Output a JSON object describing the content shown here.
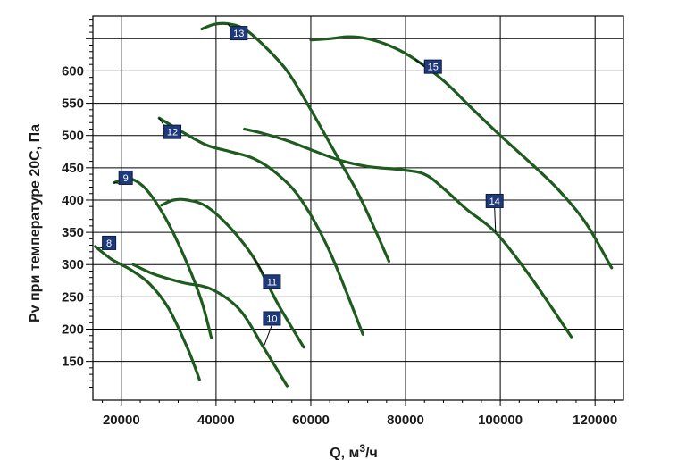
{
  "chart_data": {
    "type": "line",
    "xlabel": "Q, м³/ч",
    "ylabel": "Pv при температуре 20C,  Па",
    "xlim": [
      14000,
      126000
    ],
    "ylim": [
      90,
      685
    ],
    "x_ticks": [
      20000,
      40000,
      60000,
      80000,
      100000,
      120000
    ],
    "x_tick_labels": [
      "20000",
      "40000",
      "60000",
      "80000",
      "100000",
      "120000"
    ],
    "y_ticks": [
      150,
      200,
      250,
      300,
      350,
      400,
      450,
      500,
      550,
      600
    ],
    "y_tick_labels": [
      "150",
      "200",
      "250",
      "300",
      "350",
      "400",
      "450",
      "500",
      "550",
      "600"
    ],
    "y_gridlines": [
      150,
      200,
      250,
      300,
      350,
      400,
      450,
      500,
      550,
      600,
      650
    ],
    "grid": true,
    "line_color": "#1e5b1e",
    "series": [
      {
        "name": "8",
        "label_at": [
          16000,
          344
        ],
        "x": [
          14500,
          18000,
          22000,
          26000,
          30000,
          34000,
          36500
        ],
        "y": [
          328,
          308,
          292,
          270,
          232,
          170,
          122
        ]
      },
      {
        "name": "9",
        "label_at": [
          19500,
          445
        ],
        "x": [
          18500,
          20500,
          23000,
          26000,
          30000,
          34000,
          37000,
          39000
        ],
        "y": [
          427,
          432,
          430,
          410,
          363,
          300,
          242,
          187
        ]
      },
      {
        "name": "10",
        "label_at": [
          50000,
          227
        ],
        "x": [
          22500,
          27000,
          33000,
          39000,
          45000,
          50000,
          55000
        ],
        "y": [
          300,
          285,
          272,
          262,
          230,
          172,
          112
        ]
      },
      {
        "name": "11",
        "label_at": [
          50000,
          284
        ],
        "x": [
          28500,
          31000,
          34000,
          38000,
          43000,
          48000,
          53000,
          58500
        ],
        "y": [
          392,
          400,
          400,
          390,
          357,
          310,
          240,
          172
        ]
      },
      {
        "name": "12",
        "label_at": [
          29000,
          516
        ],
        "x": [
          28000,
          33000,
          38000,
          43000,
          48000,
          53000,
          58000,
          64000,
          71000
        ],
        "y": [
          527,
          505,
          485,
          475,
          464,
          440,
          400,
          320,
          192
        ]
      },
      {
        "name": "13",
        "label_at": [
          43000,
          669
        ],
        "x": [
          37000,
          39500,
          42500,
          46000,
          50000,
          55000,
          60000,
          65000,
          70000,
          73500,
          76500
        ],
        "y": [
          665,
          672,
          673,
          665,
          640,
          600,
          540,
          475,
          410,
          355,
          305
        ]
      },
      {
        "name": "14",
        "label_at": [
          97000,
          409
        ],
        "x": [
          46000,
          50000,
          55000,
          60000,
          66000,
          72000,
          79000,
          84000,
          88000,
          93000,
          99000,
          106000,
          115000
        ],
        "y": [
          510,
          503,
          492,
          478,
          462,
          452,
          447,
          440,
          418,
          385,
          350,
          285,
          188
        ]
      },
      {
        "name": "15",
        "label_at": [
          84000,
          617
        ],
        "x": [
          60000,
          64000,
          68000,
          72000,
          77000,
          82000,
          88000,
          94000,
          100000,
          106000,
          112000,
          118000,
          123500
        ],
        "y": [
          648,
          650,
          653,
          650,
          638,
          618,
          585,
          542,
          500,
          460,
          418,
          365,
          295
        ]
      }
    ]
  }
}
